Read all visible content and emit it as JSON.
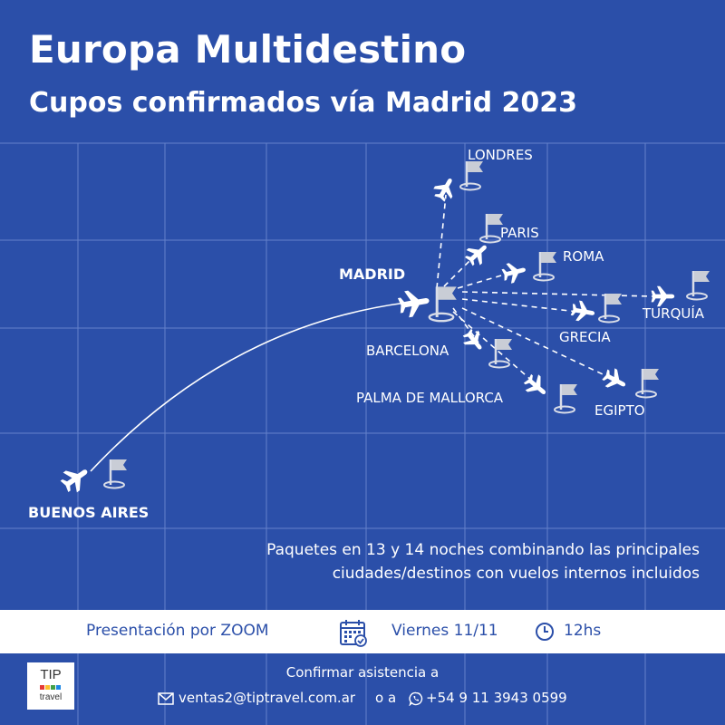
{
  "poster": {
    "title": "Europa Multidestino",
    "subtitle": "Cupos confirmados vía Madrid 2023",
    "cities": {
      "madrid": "MADRID",
      "londres": "LONDRES",
      "paris": "PARIS",
      "roma": "ROMA",
      "turquia": "TURQUÍA",
      "grecia": "GRECIA",
      "barcelona": "BARCELONA",
      "palma": "PALMA DE MALLORCA",
      "egipto": "EGIPTO",
      "buenos_aires": "BUENOS AIRES"
    },
    "description_line1": "Paquetes en 13 y 14 noches combinando las principales",
    "description_line2": "ciudades/destinos con vuelos internos incluidos",
    "event": {
      "presentation": "Presentación por ZOOM",
      "date": "Viernes 11/11",
      "time": "12hs"
    },
    "confirm_text": "Confirmar asistencia a",
    "email": "ventas2@tiptravel.com.ar",
    "separator": "o a",
    "phone": "+54 9 11 3943 0599",
    "logo": {
      "top": "TIP",
      "bottom": "travel"
    },
    "colors": {
      "background": "#2b4fa9",
      "band": "#ffffff",
      "text_dark": "#2b4fa9"
    },
    "icons": [
      "airplane-icon",
      "flag-marker-icon",
      "calendar-icon",
      "clock-icon",
      "mail-icon",
      "whatsapp-icon"
    ]
  }
}
